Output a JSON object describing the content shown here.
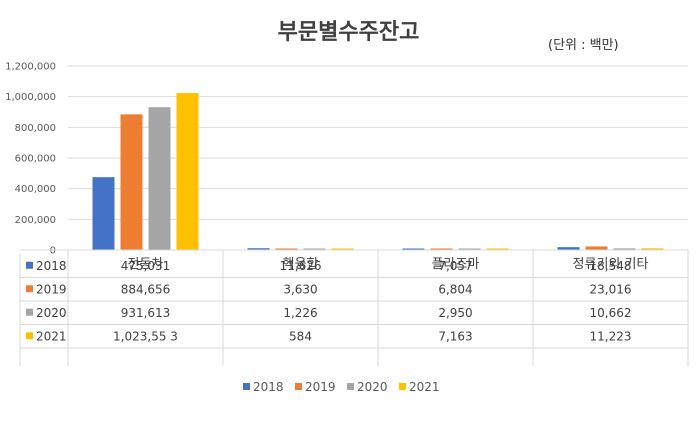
{
  "chart_data": {
    "type": "bar",
    "title": "부문별수주잔고",
    "unit_label": "(단위 : 백만)",
    "categories": [
      "전동차",
      "핵융합",
      "플라즈마",
      "정류기외 기타"
    ],
    "ylim": [
      0,
      1200000
    ],
    "yticks": [
      0,
      200000,
      400000,
      600000,
      800000,
      1000000,
      1200000
    ],
    "ytick_labels": [
      "0",
      "200,000",
      "400,000",
      "600,000",
      "800,000",
      "1,000,000",
      "1,200,000"
    ],
    "grid": true,
    "legend_position": "bottom",
    "series": [
      {
        "name": "2018",
        "color": "#4472C4",
        "values": [
          475031,
          11626,
          7057,
          18548
        ],
        "labels": [
          "475,031",
          "11,626",
          "7,057",
          "18,548"
        ]
      },
      {
        "name": "2019",
        "color": "#ED7D31",
        "values": [
          884656,
          3630,
          6804,
          23016
        ],
        "labels": [
          "884,656",
          "3,630",
          "6,804",
          "23,016"
        ]
      },
      {
        "name": "2020",
        "color": "#A5A5A5",
        "values": [
          931613,
          1226,
          2950,
          10662
        ],
        "labels": [
          "931,613",
          "1,226",
          "2,950",
          "10,662"
        ]
      },
      {
        "name": "2021",
        "color": "#FFC000",
        "values": [
          1023553,
          584,
          7163,
          11223
        ],
        "labels": [
          "1,023,55 3",
          "584",
          "7,163",
          "11,223"
        ]
      }
    ]
  }
}
